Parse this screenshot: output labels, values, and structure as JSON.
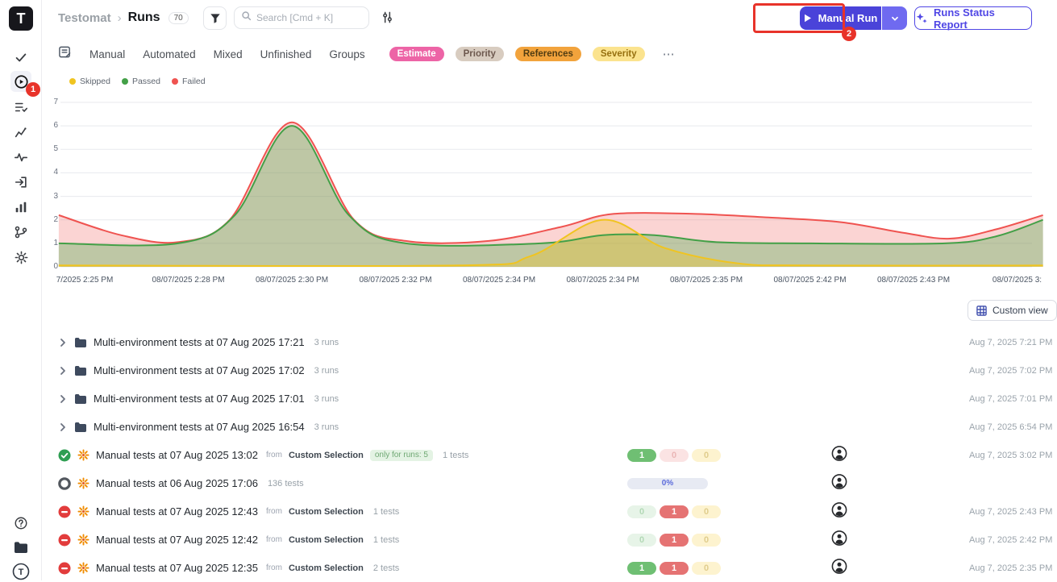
{
  "brand": {
    "letter": "T"
  },
  "header": {
    "breadcrumb_project": "Testomat",
    "breadcrumb_sep": "›",
    "breadcrumb_page": "Runs",
    "runs_count": "70",
    "search_placeholder": "Search [Cmd + K]",
    "manual_run_label": "Manual Run",
    "runs_status_report_label": "Runs Status Report"
  },
  "annotations": {
    "step1": "1",
    "step2": "2"
  },
  "tabs": {
    "items": [
      "Manual",
      "Automated",
      "Mixed",
      "Unfinished",
      "Groups"
    ],
    "pills": [
      {
        "label": "Estimate",
        "bg": "#ed64a6",
        "fg": "#ffffff"
      },
      {
        "label": "Priority",
        "bg": "#d8ccc0",
        "fg": "#6d584e"
      },
      {
        "label": "References",
        "bg": "#f2a33c",
        "fg": "#513c12"
      },
      {
        "label": "Severity",
        "bg": "#fbe38e",
        "fg": "#977010"
      }
    ],
    "more": "⋯"
  },
  "legend": [
    {
      "label": "Skipped",
      "color": "#f0c420"
    },
    {
      "label": "Passed",
      "color": "#43a047"
    },
    {
      "label": "Failed",
      "color": "#ef5350"
    }
  ],
  "chart_data": {
    "type": "area",
    "title": "",
    "xlabel": "",
    "ylabel": "",
    "ylim": [
      0,
      7
    ],
    "y_ticks": [
      0,
      1,
      2,
      3,
      4,
      5,
      6,
      7
    ],
    "grid": true,
    "legend_position": "top-left",
    "x_ticks": [
      "7/2025 2:25 PM",
      "08/07/2025 2:28 PM",
      "08/07/2025 2:30 PM",
      "08/07/2025 2:32 PM",
      "08/07/2025 2:34 PM",
      "08/07/2025 2:34 PM",
      "08/07/2025 2:35 PM",
      "08/07/2025 2:42 PM",
      "08/07/2025 2:43 PM",
      "08/07/2025 3:"
    ],
    "series": [
      {
        "name": "Failed",
        "color": "#ef5350",
        "fill": "rgba(239,83,80,0.25)",
        "points": [
          [
            -0.25,
            2.2
          ],
          [
            0.35,
            1.35
          ],
          [
            0.9,
            1.05
          ],
          [
            1.4,
            2.0
          ],
          [
            2,
            6.15
          ],
          [
            2.6,
            2.0
          ],
          [
            3.1,
            1.1
          ],
          [
            3.9,
            1.1
          ],
          [
            4.6,
            1.7
          ],
          [
            5.1,
            2.25
          ],
          [
            5.9,
            2.25
          ],
          [
            6.6,
            2.1
          ],
          [
            7.3,
            1.9
          ],
          [
            7.9,
            1.45
          ],
          [
            8.35,
            1.2
          ],
          [
            8.8,
            1.6
          ],
          [
            9.25,
            2.2
          ]
        ]
      },
      {
        "name": "Passed",
        "color": "#43a047",
        "fill": "rgba(76,175,80,0.35)",
        "points": [
          [
            -0.25,
            1
          ],
          [
            0.9,
            1
          ],
          [
            1.45,
            2.2
          ],
          [
            2,
            6
          ],
          [
            2.55,
            2.2
          ],
          [
            3.1,
            1
          ],
          [
            4.4,
            1
          ],
          [
            5,
            1.35
          ],
          [
            5.5,
            1.35
          ],
          [
            6.1,
            1.05
          ],
          [
            7,
            1
          ],
          [
            8.3,
            1
          ],
          [
            8.8,
            1.3
          ],
          [
            9.25,
            2
          ]
        ]
      },
      {
        "name": "Skipped",
        "color": "#f0c420",
        "fill": "rgba(240,196,32,0.35)",
        "points": [
          [
            -0.25,
            0.06
          ],
          [
            3.6,
            0.06
          ],
          [
            4.3,
            0.45
          ],
          [
            5,
            2
          ],
          [
            5.6,
            0.8
          ],
          [
            6.3,
            0.15
          ],
          [
            7,
            0.06
          ],
          [
            9.25,
            0.06
          ]
        ]
      }
    ]
  },
  "custom_view": {
    "label": "Custom view"
  },
  "runs": [
    {
      "type": "group",
      "title": "Multi-environment tests at 07 Aug 2025 17:21",
      "meta": "3 runs",
      "date": "Aug 7, 2025 7:21 PM"
    },
    {
      "type": "group",
      "title": "Multi-environment tests at 07 Aug 2025 17:02",
      "meta": "3 runs",
      "date": "Aug 7, 2025 7:02 PM"
    },
    {
      "type": "group",
      "title": "Multi-environment tests at 07 Aug 2025 17:01",
      "meta": "3 runs",
      "date": "Aug 7, 2025 7:01 PM"
    },
    {
      "type": "group",
      "title": "Multi-environment tests at 07 Aug 2025 16:54",
      "meta": "3 runs",
      "date": "Aug 7, 2025 6:54 PM"
    },
    {
      "type": "run",
      "status": "passed",
      "title": "Manual tests at 07 Aug 2025 13:02",
      "from": "from",
      "source": "Custom Selection",
      "tag": "only for runs: 5",
      "meta": "1 tests",
      "counts": [
        1,
        0,
        0
      ],
      "date": "Aug 7, 2025 3:02 PM"
    },
    {
      "type": "run",
      "status": "pending",
      "title": "Manual tests at 06 Aug 2025 17:06",
      "meta": "136 tests",
      "progress": "0%",
      "date": ""
    },
    {
      "type": "run",
      "status": "failed",
      "title": "Manual tests at 07 Aug 2025 12:43",
      "from": "from",
      "source": "Custom Selection",
      "meta": "1 tests",
      "counts": [
        0,
        1,
        0
      ],
      "date": "Aug 7, 2025 2:43 PM"
    },
    {
      "type": "run",
      "status": "failed",
      "title": "Manual tests at 07 Aug 2025 12:42",
      "from": "from",
      "source": "Custom Selection",
      "meta": "1 tests",
      "counts": [
        0,
        1,
        0
      ],
      "date": "Aug 7, 2025 2:42 PM"
    },
    {
      "type": "run",
      "status": "failed",
      "title": "Manual tests at 07 Aug 2025 12:35",
      "from": "from",
      "source": "Custom Selection",
      "meta": "2 tests",
      "counts": [
        1,
        1,
        0
      ],
      "date": "Aug 7, 2025 2:35 PM"
    }
  ]
}
